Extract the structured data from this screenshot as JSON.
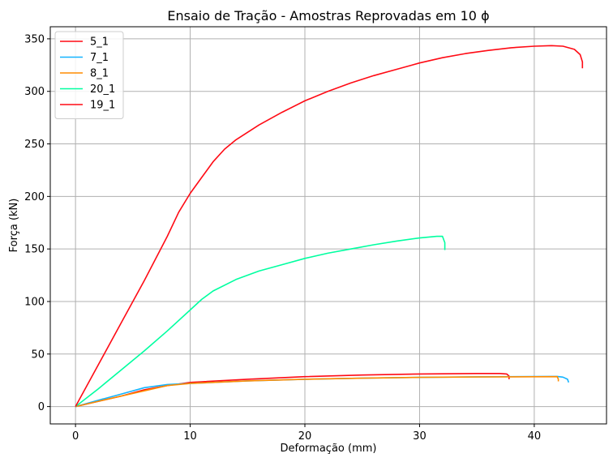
{
  "chart_data": {
    "type": "line",
    "title": "Ensaio de Tração - Amostras Reprovadas em 10 ϕ",
    "xlabel": "Deformação (mm)",
    "ylabel": "Força (kN)",
    "xlim": [
      -2.2,
      46.3
    ],
    "ylim": [
      -16.5,
      361.5
    ],
    "xticks": [
      0,
      10,
      20,
      30,
      40
    ],
    "yticks": [
      0,
      50,
      100,
      150,
      200,
      250,
      300,
      350
    ],
    "grid": true,
    "legend_position": "upper-left",
    "series": [
      {
        "name": "5_1",
        "color": "#ff0a14",
        "points": [
          [
            0,
            0
          ],
          [
            2,
            5
          ],
          [
            4,
            10
          ],
          [
            6,
            16
          ],
          [
            8,
            20
          ],
          [
            10,
            23
          ],
          [
            15,
            26
          ],
          [
            20,
            28.5
          ],
          [
            25,
            30
          ],
          [
            30,
            31
          ],
          [
            35,
            31.5
          ],
          [
            37,
            31.5
          ],
          [
            37.6,
            31
          ],
          [
            37.8,
            29
          ],
          [
            37.8,
            26
          ]
        ]
      },
      {
        "name": "7_1",
        "color": "#14b4ff",
        "points": [
          [
            0,
            0
          ],
          [
            2,
            6
          ],
          [
            4,
            12
          ],
          [
            6,
            18
          ],
          [
            8,
            21
          ],
          [
            10,
            22
          ],
          [
            15,
            24.5
          ],
          [
            20,
            26
          ],
          [
            25,
            27
          ],
          [
            30,
            27.8
          ],
          [
            35,
            28.3
          ],
          [
            40,
            28.6
          ],
          [
            42,
            28.7
          ],
          [
            42.5,
            28
          ],
          [
            42.9,
            26
          ],
          [
            43,
            23
          ]
        ]
      },
      {
        "name": "8_1",
        "color": "#ff8c00",
        "points": [
          [
            0,
            0
          ],
          [
            2,
            5
          ],
          [
            4,
            10
          ],
          [
            6,
            15
          ],
          [
            8,
            20
          ],
          [
            10,
            22
          ],
          [
            15,
            24.5
          ],
          [
            20,
            26
          ],
          [
            25,
            27
          ],
          [
            30,
            27.8
          ],
          [
            35,
            28.2
          ],
          [
            40,
            28.4
          ],
          [
            42,
            28.5
          ],
          [
            42.1,
            26
          ],
          [
            42.1,
            24
          ]
        ]
      },
      {
        "name": "20_1",
        "color": "#00ffa0",
        "points": [
          [
            0,
            0
          ],
          [
            2,
            17
          ],
          [
            4,
            35
          ],
          [
            6,
            53
          ],
          [
            8,
            72
          ],
          [
            10,
            92
          ],
          [
            11,
            102
          ],
          [
            12,
            110
          ],
          [
            14,
            121
          ],
          [
            16,
            129
          ],
          [
            18,
            135
          ],
          [
            20,
            141
          ],
          [
            22,
            146
          ],
          [
            24,
            150
          ],
          [
            26,
            154
          ],
          [
            28,
            157.5
          ],
          [
            30,
            160.5
          ],
          [
            31.5,
            162
          ],
          [
            32,
            162
          ],
          [
            32.2,
            156
          ],
          [
            32.2,
            149
          ]
        ]
      },
      {
        "name": "19_1",
        "color": "#ff0a14",
        "points": [
          [
            0,
            0
          ],
          [
            2,
            40
          ],
          [
            4,
            80
          ],
          [
            6,
            120
          ],
          [
            8,
            162
          ],
          [
            9,
            185
          ],
          [
            10,
            203
          ],
          [
            11,
            218
          ],
          [
            12,
            233
          ],
          [
            13,
            245
          ],
          [
            14,
            254
          ],
          [
            16,
            268
          ],
          [
            18,
            280
          ],
          [
            20,
            291
          ],
          [
            22,
            300
          ],
          [
            24,
            308
          ],
          [
            26,
            315
          ],
          [
            28,
            321
          ],
          [
            30,
            327
          ],
          [
            32,
            332
          ],
          [
            34,
            336
          ],
          [
            36,
            339
          ],
          [
            38,
            341.5
          ],
          [
            40,
            343
          ],
          [
            41.5,
            343.5
          ],
          [
            42.5,
            343
          ],
          [
            43.5,
            340
          ],
          [
            44,
            335
          ],
          [
            44.2,
            328
          ],
          [
            44.2,
            322
          ]
        ]
      }
    ]
  }
}
